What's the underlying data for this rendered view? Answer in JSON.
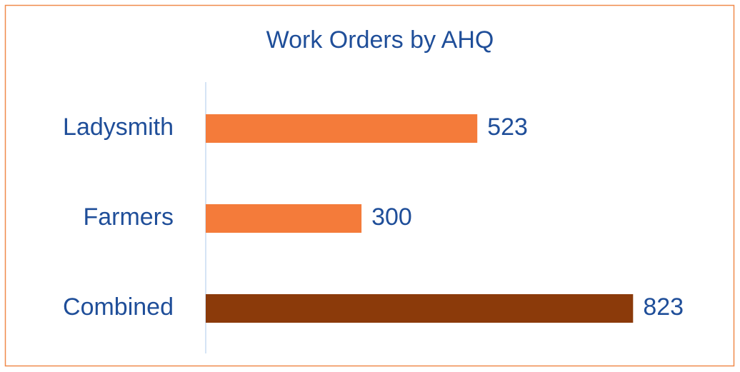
{
  "chart_data": {
    "type": "hbar",
    "title": "Work Orders by AHQ",
    "categories": [
      "Ladysmith",
      "Farmers",
      "Combined"
    ],
    "values": [
      523,
      300,
      823
    ],
    "colors": [
      "#f47b3a",
      "#f47b3a",
      "#8b3a0a"
    ],
    "xlim": [
      0,
      1000
    ]
  }
}
